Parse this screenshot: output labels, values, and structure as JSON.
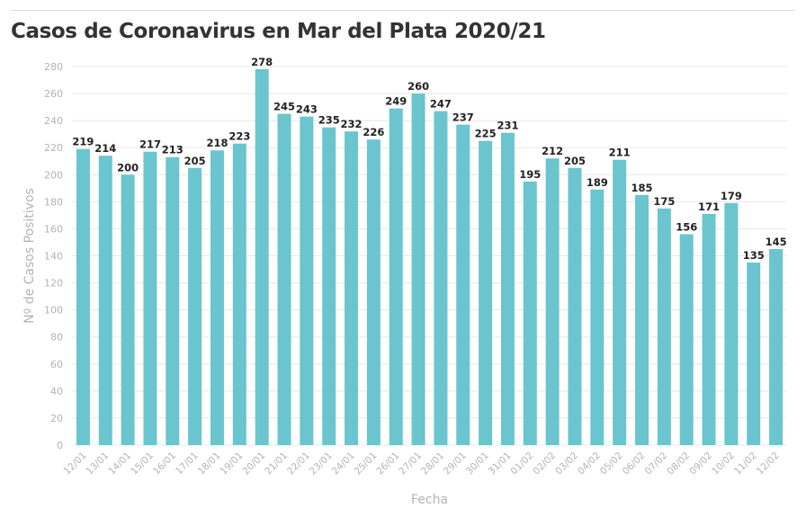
{
  "title": "Casos de Coronavirus en Mar del Plata 2020/21",
  "colors": {
    "bar": "#6ac5ce",
    "grid": "#e8e8e8",
    "tick_text": "#b3b3b3",
    "label_text": "#222222",
    "axis_title": "#b3b3b3"
  },
  "chart_data": {
    "type": "bar",
    "title": "Casos de Coronavirus en Mar del Plata 2020/21",
    "xlabel": "Fecha",
    "ylabel": "Nº de Casos Positivos",
    "ylim": [
      0,
      280
    ],
    "yticks": [
      0,
      20,
      40,
      60,
      80,
      100,
      120,
      140,
      160,
      180,
      200,
      220,
      240,
      260,
      280
    ],
    "grid": true,
    "categories": [
      "12/01",
      "13/01",
      "14/01",
      "15/01",
      "16/01",
      "17/01",
      "18/01",
      "19/01",
      "20/01",
      "21/01",
      "22/01",
      "23/01",
      "24/01",
      "25/01",
      "26/01",
      "27/01",
      "28/01",
      "29/01",
      "30/01",
      "31/01",
      "01/02",
      "02/02",
      "03/02",
      "04/02",
      "05/02",
      "06/02",
      "07/02",
      "08/02",
      "09/02",
      "10/02",
      "11/02",
      "12/02"
    ],
    "values": [
      219,
      214,
      200,
      217,
      213,
      205,
      218,
      223,
      278,
      245,
      243,
      235,
      232,
      226,
      249,
      260,
      247,
      237,
      225,
      231,
      195,
      212,
      205,
      189,
      211,
      185,
      175,
      156,
      171,
      179,
      135,
      145
    ]
  }
}
